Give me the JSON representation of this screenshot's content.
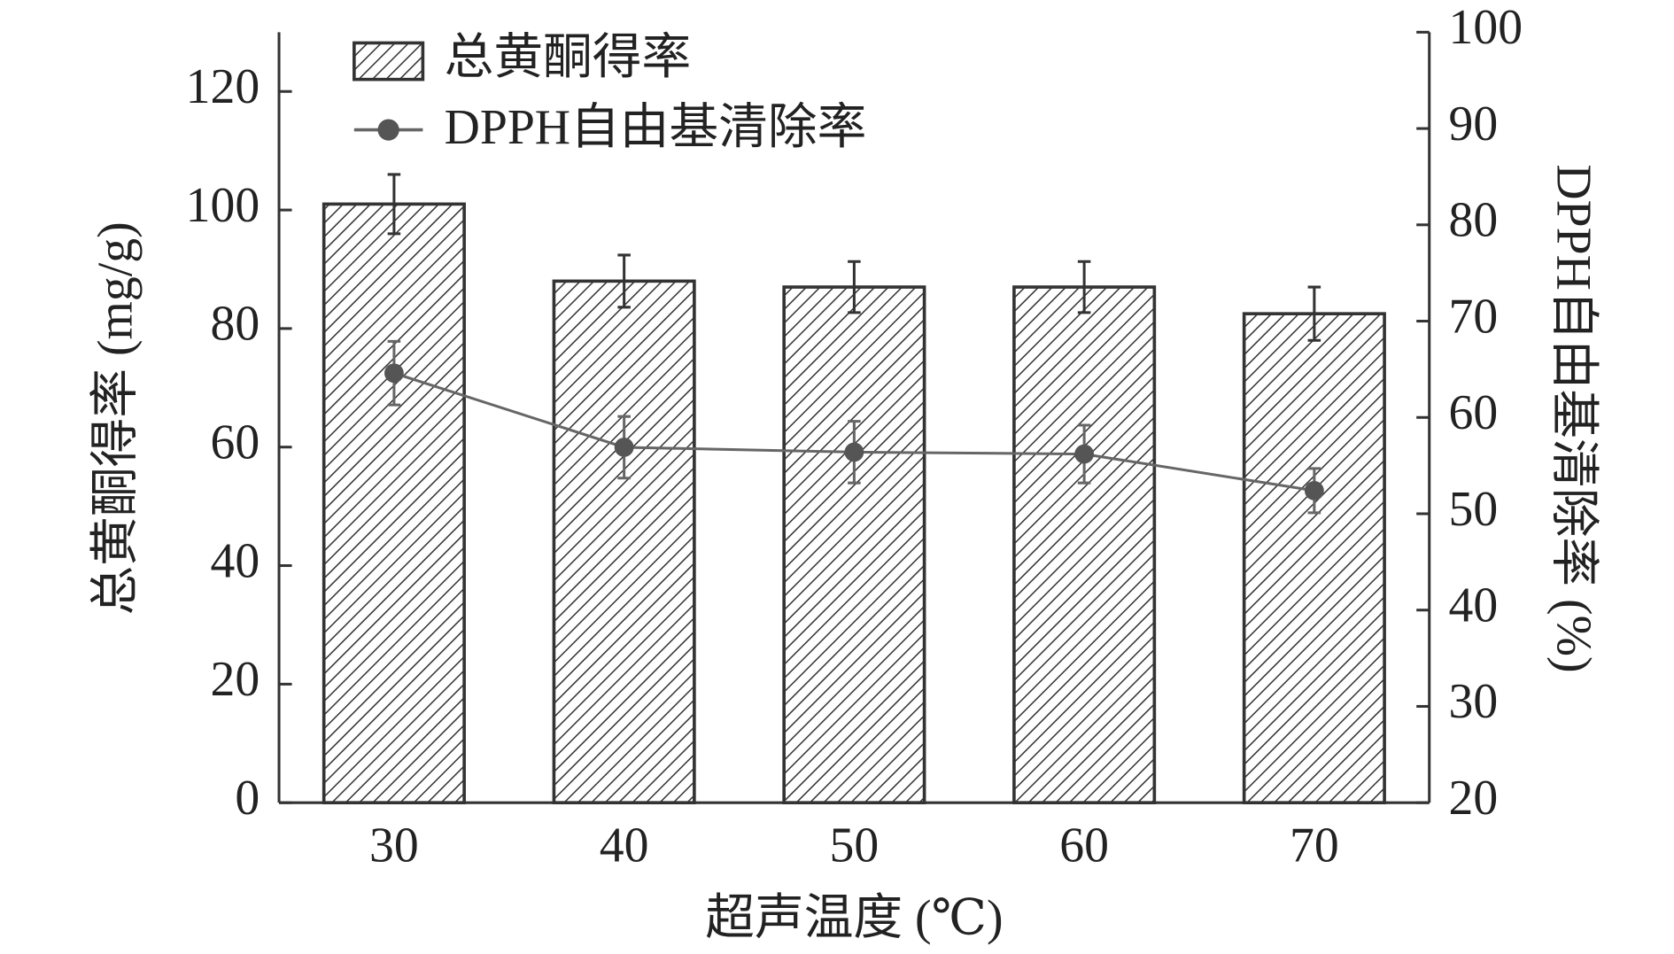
{
  "chart_data": {
    "type": "bar_line",
    "xlabel": "超声温度 (℃)",
    "ylabel": "总黄酮得率 (mg/g)",
    "y2label": "DPPH自由基清除率 (%)",
    "categories": [
      "30",
      "40",
      "50",
      "60",
      "70"
    ],
    "series": [
      {
        "name": "总黄酮得率",
        "type": "bar",
        "color": "#333333",
        "values": [
          101,
          88,
          87,
          87,
          82.5
        ],
        "errors": [
          5,
          4.4,
          4.3,
          4.3,
          4.5
        ]
      },
      {
        "name": "DPPH自由基清除率",
        "type": "line",
        "axis": "y2",
        "color": "#666666",
        "values": [
          64.6,
          56.9,
          56.4,
          56.2,
          52.4
        ],
        "errors": [
          3.3,
          3.2,
          3.2,
          3.0,
          2.3
        ]
      }
    ],
    "ylim": [
      0,
      130
    ],
    "yticks": [
      0,
      20,
      40,
      60,
      80,
      100,
      120
    ],
    "y2lim": [
      20,
      100
    ],
    "y2ticks": [
      20,
      30,
      40,
      50,
      60,
      70,
      80,
      90,
      100
    ],
    "legend": "upper left"
  }
}
